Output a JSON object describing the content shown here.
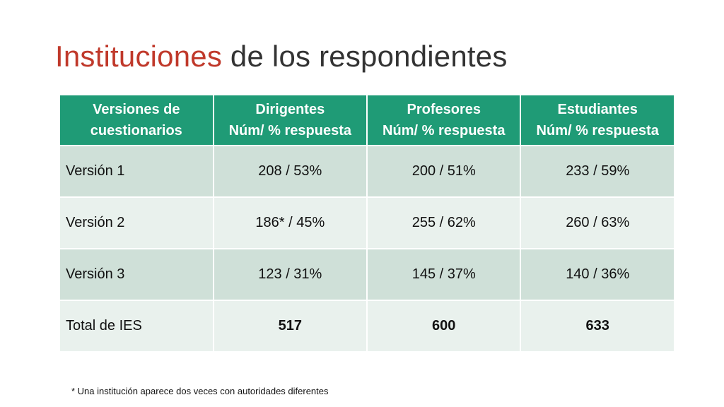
{
  "slide": {
    "title_accent": "Instituciones",
    "title_rest": " de los respondientes",
    "footnote": "* Una institución aparece dos veces con autoridades diferentes"
  },
  "table": {
    "headers": [
      {
        "line1": "Versiones de",
        "line2": "cuestionarios"
      },
      {
        "line1": "Dirigentes",
        "line2": "Núm/ % respuesta"
      },
      {
        "line1": "Profesores",
        "line2": "Núm/ % respuesta"
      },
      {
        "line1": "Estudiantes",
        "line2": "Núm/ % respuesta"
      }
    ],
    "rows": [
      {
        "label": "Versión 1",
        "dirigentes": "208 / 53%",
        "profesores": "200 / 51%",
        "estudiantes": "233 / 59%"
      },
      {
        "label": "Versión 2",
        "dirigentes": "186* / 45%",
        "profesores": "255 / 62%",
        "estudiantes": "260 / 63%"
      },
      {
        "label": "Versión 3",
        "dirigentes": "123 / 31%",
        "profesores": "145 / 37%",
        "estudiantes": "140 / 36%"
      },
      {
        "label": "Total de IES",
        "dirigentes": "517",
        "profesores": "600",
        "estudiantes": "633"
      }
    ]
  },
  "colors": {
    "header_bg": "#1f9b76",
    "row_dark": "#cfe0d8",
    "row_light": "#e9f1ed",
    "title_accent": "#c0392b",
    "total_text": "#c00000"
  }
}
